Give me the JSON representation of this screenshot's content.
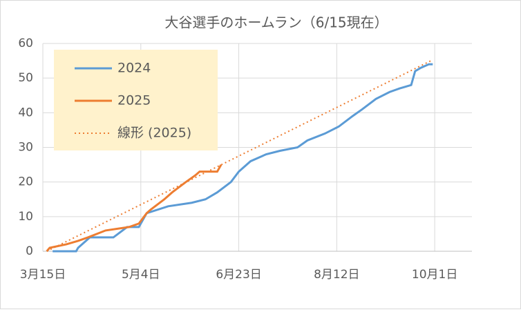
{
  "chart_data": {
    "type": "line",
    "title": "大谷選手のホームラン（6/15現在）",
    "xlim": [
      0,
      219
    ],
    "xticks": [
      {
        "value": 0,
        "label": "3月15日"
      },
      {
        "value": 50,
        "label": "5月4日"
      },
      {
        "value": 100,
        "label": "6月23日"
      },
      {
        "value": 150,
        "label": "8月12日"
      },
      {
        "value": 200,
        "label": "10月1日"
      }
    ],
    "ylim": [
      0,
      60
    ],
    "yticks": [
      0,
      10,
      20,
      30,
      40,
      50,
      60
    ],
    "grid": true,
    "legend": "top-left",
    "series": [
      {
        "name": "2024",
        "color": "#5b9bd5",
        "dash": "solid",
        "x": [
          5,
          17,
          18,
          24,
          36,
          43,
          49,
          53,
          64,
          76,
          83,
          89,
          96,
          100,
          106,
          114,
          121,
          130,
          135,
          144,
          151,
          158,
          163,
          170,
          177,
          182,
          188,
          190,
          193,
          197,
          199
        ],
        "values": [
          0,
          0,
          1,
          4,
          4,
          7,
          7,
          11,
          13,
          14,
          15,
          17,
          20,
          23,
          26,
          28,
          29,
          30,
          32,
          34,
          36,
          39,
          41,
          44,
          46,
          47,
          48,
          52,
          53,
          54,
          54
        ]
      },
      {
        "name": "2025",
        "color": "#ed7d31",
        "dash": "solid",
        "x": [
          2,
          3.5,
          12,
          18,
          23,
          32,
          44,
          49,
          53,
          55,
          62,
          66,
          73,
          78,
          80,
          89,
          91
        ],
        "values": [
          0,
          1,
          2,
          3,
          4,
          6,
          7,
          8,
          11,
          12,
          15,
          17,
          20,
          22,
          23,
          23,
          25
        ]
      },
      {
        "name": "線形 (2025)",
        "color": "#ed7d31",
        "dash": "dotted",
        "x": [
          2,
          198
        ],
        "values": [
          0,
          55
        ]
      }
    ]
  }
}
